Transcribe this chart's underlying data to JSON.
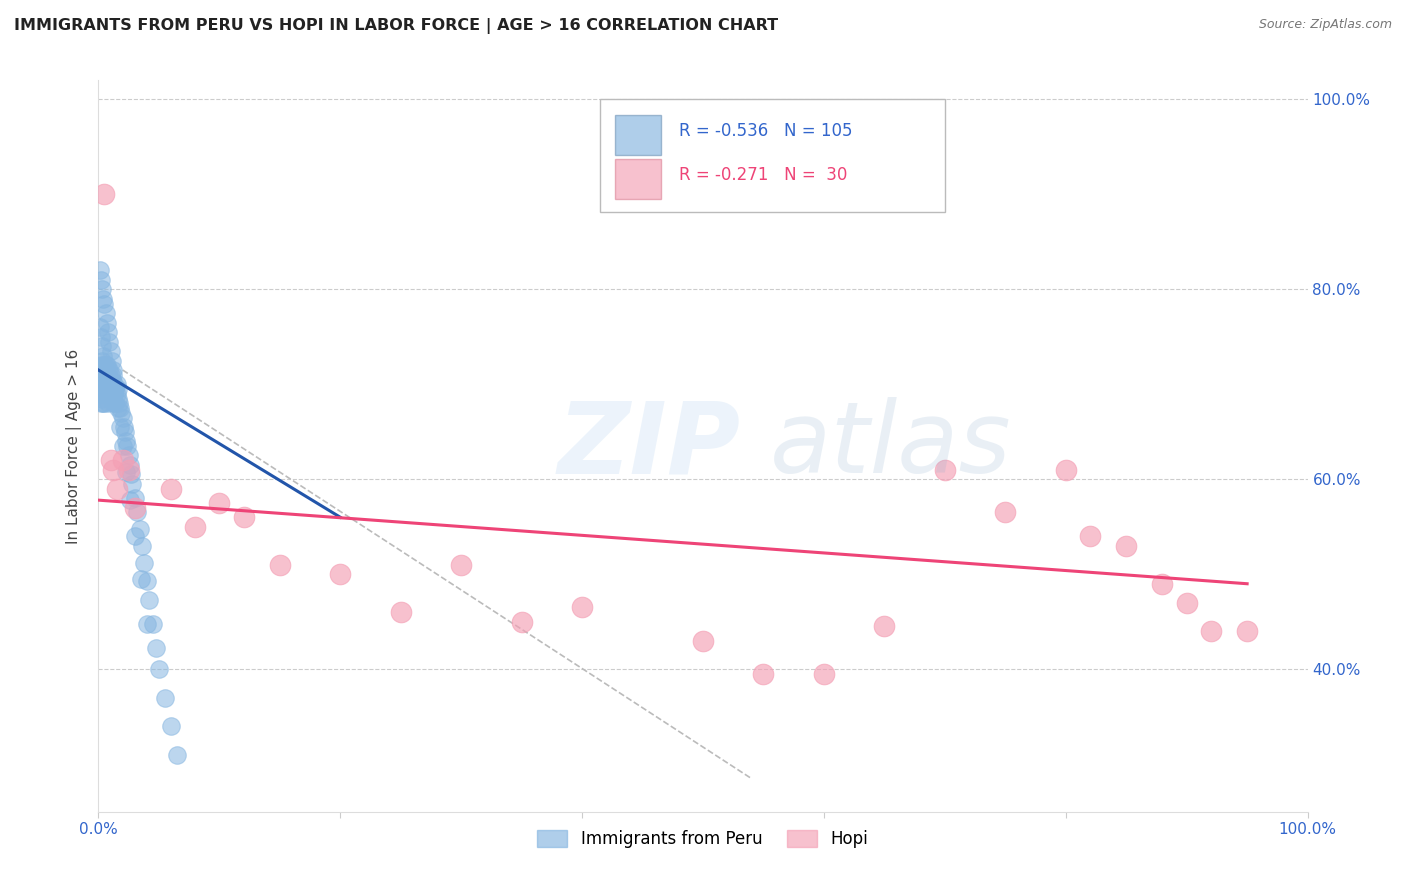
{
  "title": "IMMIGRANTS FROM PERU VS HOPI IN LABOR FORCE | AGE > 16 CORRELATION CHART",
  "source": "Source: ZipAtlas.com",
  "ylabel": "In Labor Force | Age > 16",
  "xlim": [
    0.0,
    1.0
  ],
  "ylim": [
    0.25,
    1.02
  ],
  "blue_R": "-0.536",
  "blue_N": "105",
  "pink_R": "-0.271",
  "pink_N": "30",
  "blue_color": "#85B5E0",
  "pink_color": "#F4A0B5",
  "blue_line_color": "#2255AA",
  "pink_line_color": "#EE4477",
  "dashed_line_color": "#BBBBBB",
  "legend_label_blue": "Immigrants from Peru",
  "legend_label_pink": "Hopi",
  "blue_scatter_x": [
    0.001,
    0.001,
    0.002,
    0.002,
    0.002,
    0.002,
    0.003,
    0.003,
    0.003,
    0.003,
    0.003,
    0.003,
    0.004,
    0.004,
    0.004,
    0.004,
    0.004,
    0.005,
    0.005,
    0.005,
    0.005,
    0.005,
    0.005,
    0.006,
    0.006,
    0.006,
    0.006,
    0.006,
    0.007,
    0.007,
    0.007,
    0.007,
    0.008,
    0.008,
    0.008,
    0.008,
    0.009,
    0.009,
    0.009,
    0.01,
    0.01,
    0.01,
    0.011,
    0.011,
    0.012,
    0.012,
    0.012,
    0.013,
    0.013,
    0.014,
    0.014,
    0.015,
    0.015,
    0.016,
    0.016,
    0.017,
    0.018,
    0.019,
    0.02,
    0.021,
    0.022,
    0.023,
    0.024,
    0.025,
    0.026,
    0.027,
    0.028,
    0.03,
    0.032,
    0.034,
    0.036,
    0.038,
    0.04,
    0.042,
    0.045,
    0.048,
    0.05,
    0.055,
    0.06,
    0.065,
    0.001,
    0.002,
    0.003,
    0.004,
    0.005,
    0.006,
    0.007,
    0.008,
    0.009,
    0.01,
    0.011,
    0.012,
    0.014,
    0.016,
    0.018,
    0.02,
    0.023,
    0.026,
    0.03,
    0.035,
    0.04,
    0.001,
    0.002,
    0.003,
    0.004
  ],
  "blue_scatter_y": [
    0.7,
    0.71,
    0.69,
    0.705,
    0.72,
    0.68,
    0.695,
    0.71,
    0.7,
    0.685,
    0.715,
    0.725,
    0.7,
    0.71,
    0.695,
    0.68,
    0.72,
    0.7,
    0.715,
    0.69,
    0.705,
    0.72,
    0.68,
    0.71,
    0.695,
    0.705,
    0.715,
    0.72,
    0.7,
    0.71,
    0.69,
    0.72,
    0.695,
    0.71,
    0.68,
    0.7,
    0.705,
    0.715,
    0.69,
    0.7,
    0.71,
    0.695,
    0.705,
    0.69,
    0.695,
    0.71,
    0.68,
    0.7,
    0.69,
    0.695,
    0.68,
    0.69,
    0.7,
    0.685,
    0.695,
    0.68,
    0.675,
    0.67,
    0.665,
    0.655,
    0.65,
    0.64,
    0.635,
    0.625,
    0.615,
    0.605,
    0.595,
    0.58,
    0.565,
    0.548,
    0.53,
    0.512,
    0.493,
    0.473,
    0.448,
    0.422,
    0.4,
    0.37,
    0.34,
    0.31,
    0.82,
    0.81,
    0.8,
    0.79,
    0.785,
    0.775,
    0.765,
    0.755,
    0.745,
    0.735,
    0.725,
    0.715,
    0.695,
    0.675,
    0.655,
    0.635,
    0.608,
    0.578,
    0.54,
    0.495,
    0.448,
    0.76,
    0.75,
    0.74,
    0.73
  ],
  "pink_scatter_x": [
    0.005,
    0.01,
    0.012,
    0.015,
    0.02,
    0.025,
    0.03,
    0.06,
    0.08,
    0.1,
    0.12,
    0.15,
    0.2,
    0.25,
    0.3,
    0.35,
    0.4,
    0.5,
    0.55,
    0.6,
    0.65,
    0.7,
    0.75,
    0.8,
    0.82,
    0.85,
    0.88,
    0.9,
    0.92,
    0.95
  ],
  "pink_scatter_y": [
    0.9,
    0.62,
    0.61,
    0.59,
    0.62,
    0.61,
    0.57,
    0.59,
    0.55,
    0.575,
    0.56,
    0.51,
    0.5,
    0.46,
    0.51,
    0.45,
    0.465,
    0.43,
    0.395,
    0.395,
    0.445,
    0.61,
    0.565,
    0.61,
    0.54,
    0.53,
    0.49,
    0.47,
    0.44,
    0.44
  ],
  "blue_trendline_x": [
    0.0,
    0.2
  ],
  "blue_trendline_y": [
    0.715,
    0.56
  ],
  "pink_trendline_x": [
    0.0,
    0.95
  ],
  "pink_trendline_y": [
    0.578,
    0.49
  ],
  "dashed_trendline_x": [
    0.02,
    0.54
  ],
  "dashed_trendline_y": [
    0.715,
    0.285
  ]
}
